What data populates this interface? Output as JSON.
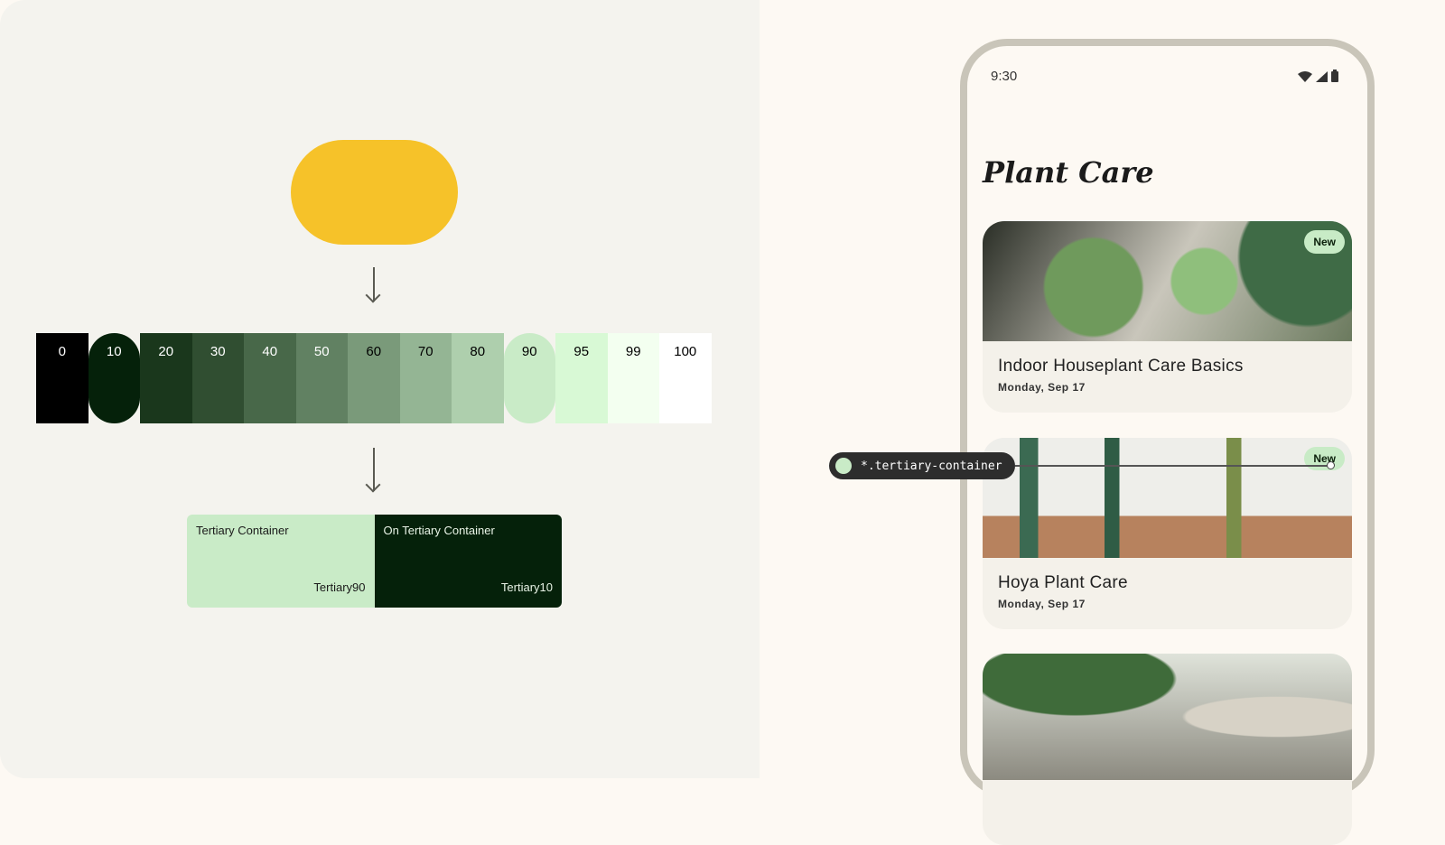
{
  "seed_color": "#f6c229",
  "palette": [
    {
      "tone": "0",
      "bg": "#000000",
      "fg": "#ffffff"
    },
    {
      "tone": "10",
      "bg": "#05210a",
      "fg": "#ffffff",
      "pill": true
    },
    {
      "tone": "20",
      "bg": "#1a371c",
      "fg": "#ffffff"
    },
    {
      "tone": "30",
      "bg": "#304e31",
      "fg": "#ffffff"
    },
    {
      "tone": "40",
      "bg": "#486849",
      "fg": "#ffffff"
    },
    {
      "tone": "50",
      "bg": "#618162",
      "fg": "#ffffff"
    },
    {
      "tone": "60",
      "bg": "#7a9a7a",
      "fg": "#000000"
    },
    {
      "tone": "70",
      "bg": "#94b594",
      "fg": "#000000"
    },
    {
      "tone": "80",
      "bg": "#aecfad",
      "fg": "#000000"
    },
    {
      "tone": "90",
      "bg": "#c9ebc7",
      "fg": "#000000",
      "pill": true
    },
    {
      "tone": "95",
      "bg": "#d8f9d5",
      "fg": "#000000"
    },
    {
      "tone": "99",
      "bg": "#f3fff0",
      "fg": "#000000"
    },
    {
      "tone": "100",
      "bg": "#ffffff",
      "fg": "#000000"
    }
  ],
  "roles": [
    {
      "label": "Tertiary Container",
      "token": "Tertiary90",
      "bg": "#c9ebc7",
      "fg": "#1a1a1a"
    },
    {
      "label": "On Tertiary Container",
      "token": "Tertiary10",
      "bg": "#05210a",
      "fg": "#e8f3e6"
    }
  ],
  "phone": {
    "time": "9:30",
    "title": "Plant Care",
    "cards": [
      {
        "title": "Indoor Houseplant Care Basics",
        "date": "Monday, Sep 17",
        "badge": "New"
      },
      {
        "title": "Hoya Plant Care",
        "date": "Monday, Sep 17",
        "badge": "New"
      },
      {
        "title": "",
        "date": ""
      }
    ]
  },
  "annotation": {
    "label": "*.tertiary-container",
    "color": "#c9ebc7"
  }
}
